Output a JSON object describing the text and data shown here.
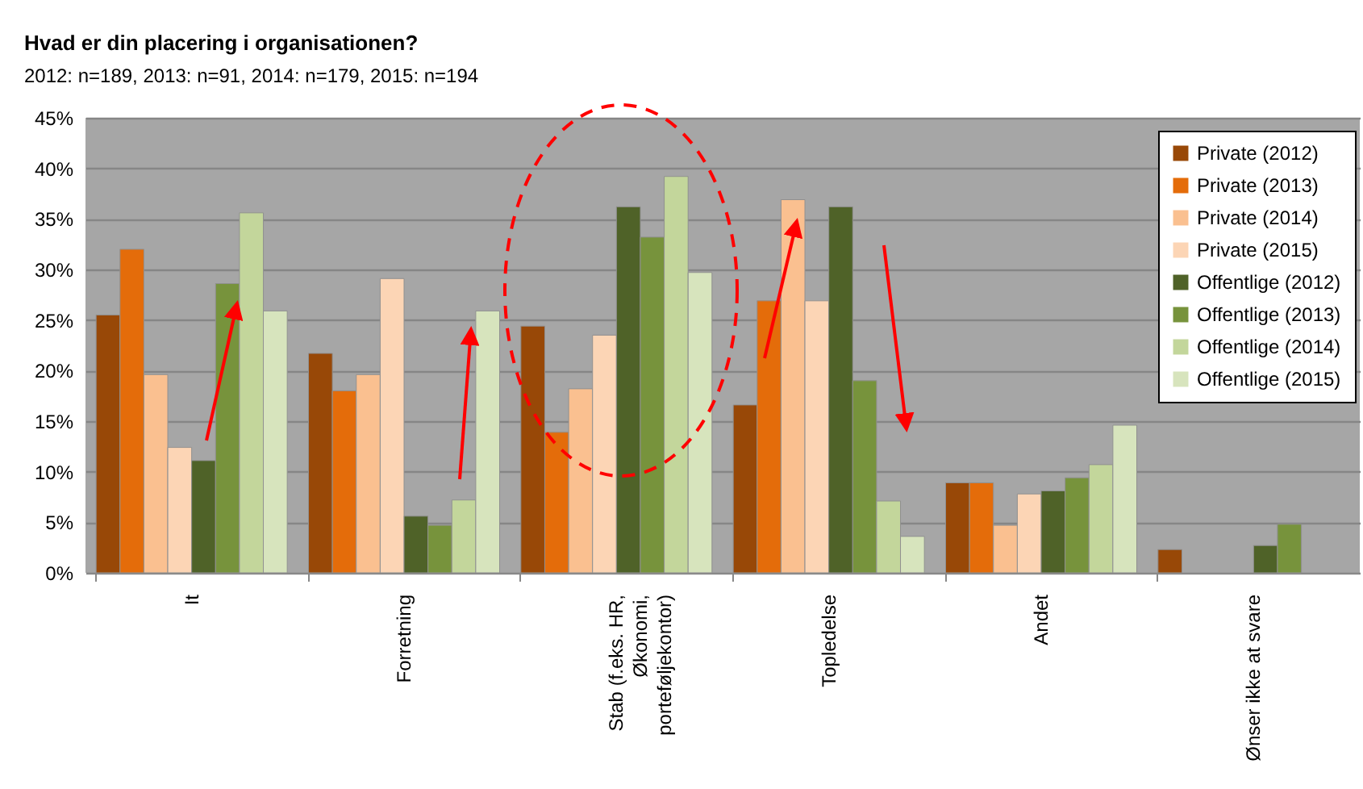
{
  "chart_data": {
    "type": "bar",
    "title": "Hvad er din placering i organisationen?",
    "subtitle": "2012: n=189, 2013: n=91, 2014: n=179, 2015: n=194",
    "categories": [
      "It",
      "Forretning",
      "Stab (f.eks. HR, Økonomi, porteføljekontor)",
      "Topledelse",
      "Andet",
      "Ønser ikke at svare"
    ],
    "series": [
      {
        "name": "Private (2012)",
        "color": "#984807",
        "values": [
          25.5,
          21.7,
          24.4,
          16.6,
          8.9,
          2.3
        ]
      },
      {
        "name": "Private (2013)",
        "color": "#e46c0a",
        "values": [
          32,
          18,
          13.9,
          26.9,
          8.9,
          null
        ]
      },
      {
        "name": "Private (2014)",
        "color": "#fac090",
        "values": [
          19.6,
          19.6,
          18.2,
          36.9,
          4.7,
          null
        ]
      },
      {
        "name": "Private (2015)",
        "color": "#fcd5b5",
        "values": [
          12.4,
          29.1,
          23.5,
          26.9,
          7.8,
          null
        ]
      },
      {
        "name": "Offentlige (2012)",
        "color": "#4f6228",
        "values": [
          11.1,
          5.6,
          36.2,
          36.2,
          8.1,
          2.7
        ]
      },
      {
        "name": "Offentlige (2013)",
        "color": "#77933c",
        "values": [
          28.6,
          4.7,
          33.2,
          19,
          9.4,
          4.8
        ]
      },
      {
        "name": "Offentlige (2014)",
        "color": "#c3d69b",
        "values": [
          35.6,
          7.2,
          39.2,
          7.1,
          10.7,
          null
        ]
      },
      {
        "name": "Offentlige (2015)",
        "color": "#d7e4bd",
        "values": [
          25.9,
          25.9,
          29.7,
          3.6,
          14.6,
          null
        ]
      }
    ],
    "ylim": [
      0,
      45
    ],
    "yticks": [
      {
        "value": 0,
        "label": "0%"
      },
      {
        "value": 5,
        "label": "5%"
      },
      {
        "value": 10,
        "label": "10%"
      },
      {
        "value": 15,
        "label": "15%"
      },
      {
        "value": 20,
        "label": "20%"
      },
      {
        "value": 25,
        "label": "25%"
      },
      {
        "value": 30,
        "label": "30%"
      },
      {
        "value": 35,
        "label": "35%"
      },
      {
        "value": 40,
        "label": "40%"
      },
      {
        "value": 45,
        "label": "45%"
      }
    ],
    "grid": true,
    "legend": "top right"
  }
}
